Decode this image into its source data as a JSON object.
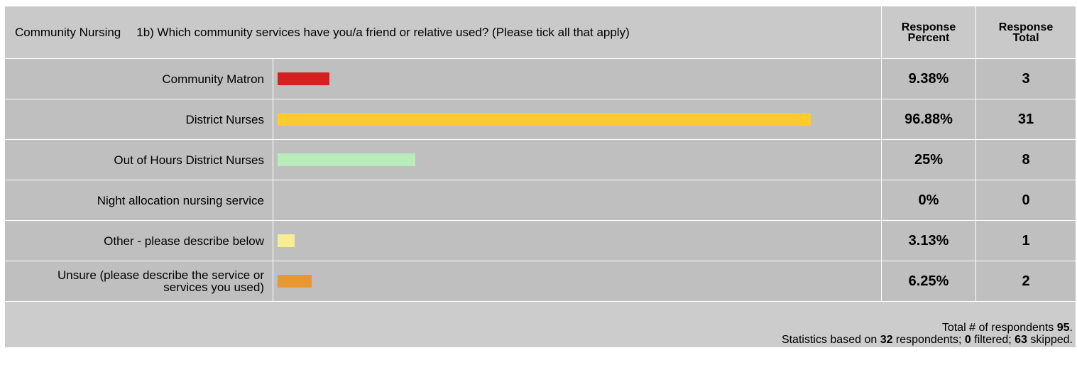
{
  "header": {
    "section": "Community Nursing",
    "question": "1b)  Which community services have you/a friend or relative used? (Please tick all that apply)",
    "col_percent_line1": "Response",
    "col_percent_line2": "Percent",
    "col_total_line1": "Response",
    "col_total_line2": "Total"
  },
  "chart_data": {
    "type": "bar",
    "orientation": "horizontal",
    "categories": [
      "Community Matron",
      "District Nurses",
      "Out of Hours District Nurses",
      "Night allocation nursing service",
      "Other - please describe below",
      "Unsure (please describe the service or services you used)"
    ],
    "values": [
      9.38,
      96.88,
      25,
      0,
      3.13,
      6.25
    ],
    "ylim": [
      0,
      100
    ],
    "colors": [
      "#d42020",
      "#fdcb2e",
      "#b8ecb8",
      "#bfbfbf",
      "#f7ee94",
      "#ea9632"
    ]
  },
  "rows": [
    {
      "label": "Community Matron",
      "percent": "9.38%",
      "total": "3"
    },
    {
      "label": "District Nurses",
      "percent": "96.88%",
      "total": "31"
    },
    {
      "label": "Out of Hours District Nurses",
      "percent": "25%",
      "total": "8"
    },
    {
      "label": "Night allocation nursing service",
      "percent": "0%",
      "total": "0"
    },
    {
      "label": "Other - please describe below",
      "percent": "3.13%",
      "total": "1"
    },
    {
      "label": "Unsure (please describe the service or services you used)",
      "percent": "6.25%",
      "total": "2"
    }
  ],
  "footer": {
    "respondents_prefix": "Total # of respondents ",
    "respondents": "95",
    "respondents_suffix": ".",
    "stats_prefix": "Statistics based on ",
    "based_on": "32",
    "stats_mid1": " respondents; ",
    "filtered": "0",
    "stats_mid2": " filtered; ",
    "skipped": "63",
    "stats_suffix": " skipped."
  }
}
